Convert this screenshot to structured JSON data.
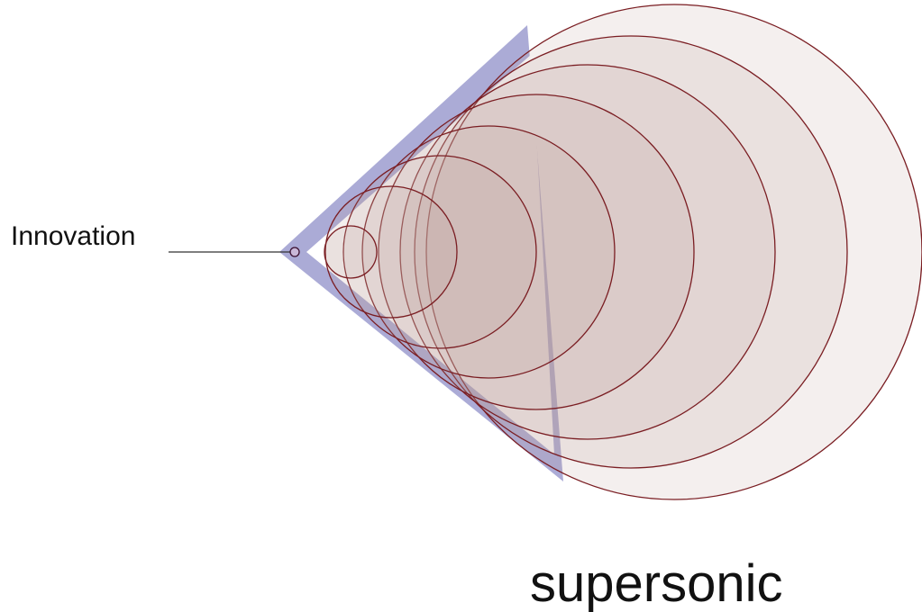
{
  "label": "Innovation",
  "caption": "supersonic"
}
